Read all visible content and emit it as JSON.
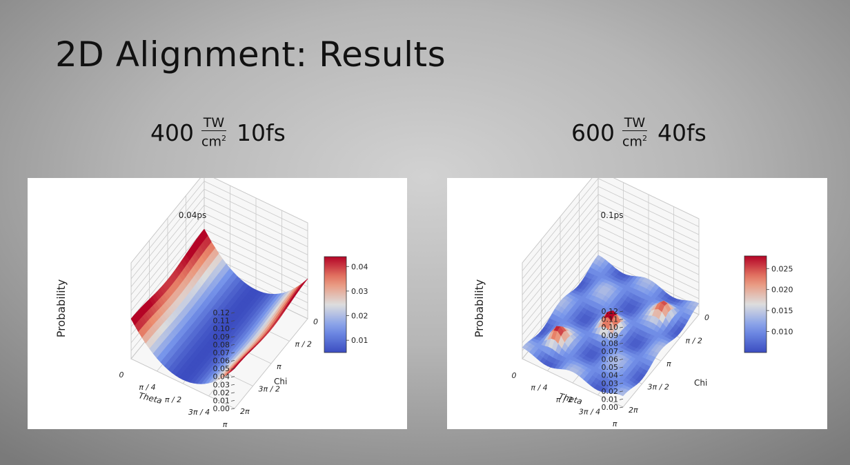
{
  "slide": {
    "title": "2D Alignment: Results"
  },
  "conditions": [
    {
      "intensity": "400",
      "unit_num": "TW",
      "unit_den": "cm",
      "unit_exp": "2",
      "duration": "10fs"
    },
    {
      "intensity": "600",
      "unit_num": "TW",
      "unit_den": "cm",
      "unit_exp": "2",
      "duration": "40fs"
    }
  ],
  "chart_data": [
    {
      "type": "surface3d",
      "title": "0.04ps",
      "zlabel": "Probability",
      "xlabel": "Theta",
      "ylabel": "Chi",
      "x_ticks": [
        "0",
        "π / 4",
        "π / 2",
        "3π / 4",
        "π"
      ],
      "y_ticks": [
        "0",
        "π / 2",
        "π",
        "3π / 2",
        "2π"
      ],
      "z_ticks": [
        "0.00",
        "0.01",
        "0.02",
        "0.03",
        "0.04",
        "0.05",
        "0.06",
        "0.07",
        "0.08",
        "0.09",
        "0.10",
        "0.11",
        "0.12"
      ],
      "zlim": [
        0,
        0.12
      ],
      "colorbar": {
        "ticks": [
          "0.04",
          "0.03",
          "0.02",
          "0.01"
        ],
        "range": [
          0.005,
          0.044
        ],
        "colormap": "coolwarm"
      },
      "surface": "peaks near Theta = 0 and Theta = π (~0.05), trough minimum ~0.005 around Theta = π/2"
    },
    {
      "type": "surface3d",
      "title": "0.1ps",
      "zlabel": "Probability",
      "xlabel": "Theta",
      "ylabel": "Chi",
      "x_ticks": [
        "0",
        "π / 4",
        "π / 2",
        "3π / 4",
        "π"
      ],
      "y_ticks": [
        "0",
        "π / 2",
        "π",
        "3π / 2",
        "2π"
      ],
      "z_ticks": [
        "0.00",
        "0.01",
        "0.02",
        "0.03",
        "0.04",
        "0.05",
        "0.06",
        "0.07",
        "0.08",
        "0.09",
        "0.10",
        "0.11",
        "0.12"
      ],
      "zlim": [
        0,
        0.12
      ],
      "colorbar": {
        "ticks": [
          "0.025",
          "0.020",
          "0.015",
          "0.010"
        ],
        "range": [
          0.005,
          0.028
        ],
        "colormap": "coolwarm"
      },
      "surface": "mostly flat ~0.01 with small peaks up to ~0.028"
    }
  ]
}
